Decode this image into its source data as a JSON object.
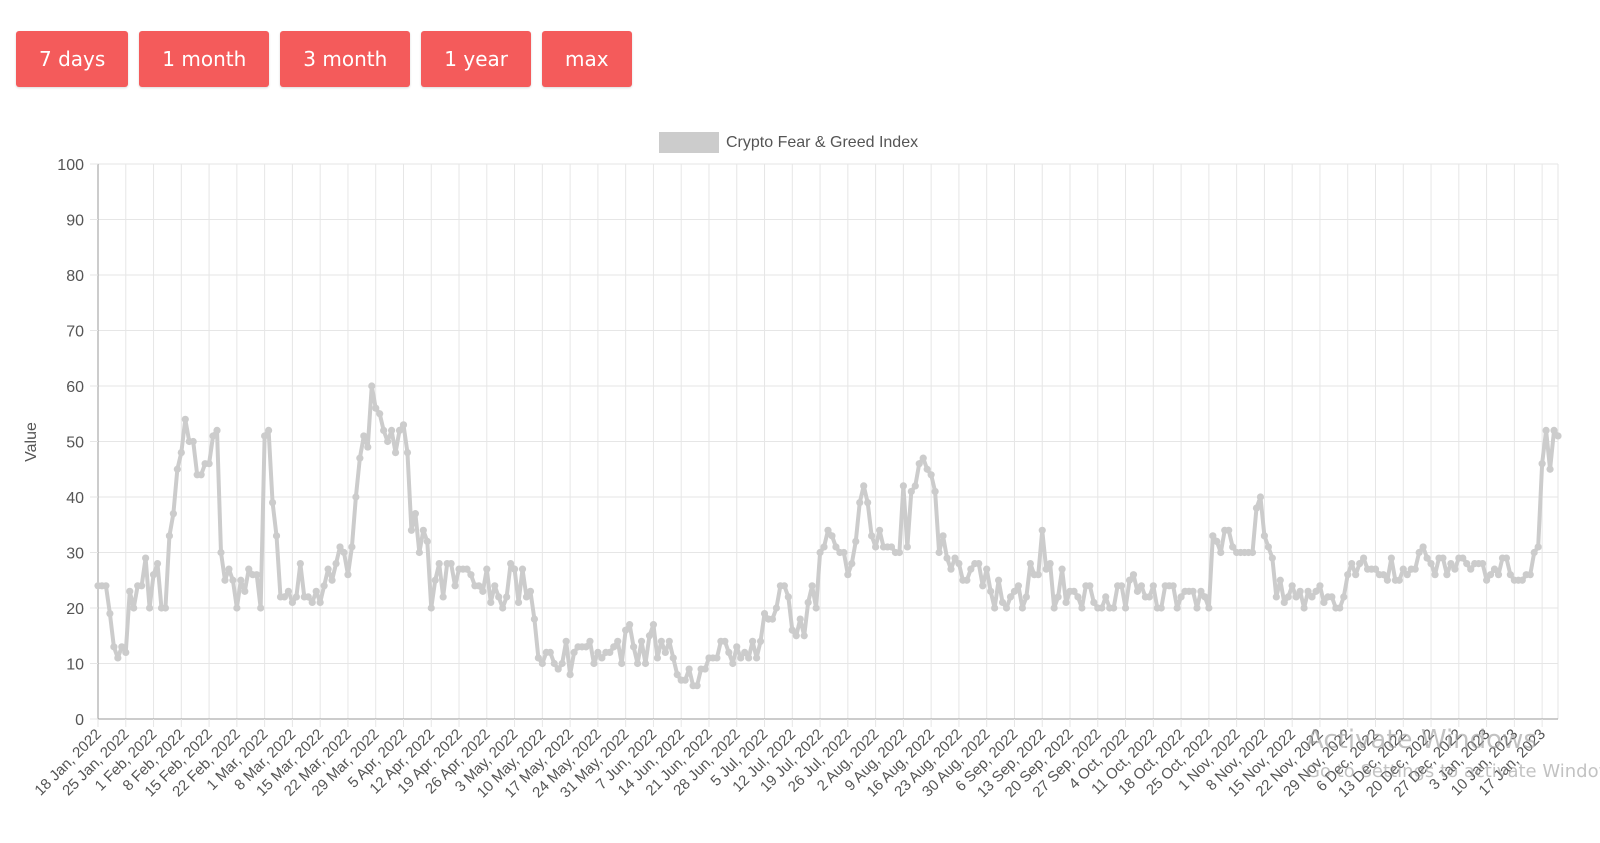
{
  "range_buttons": [
    "7 days",
    "1 month",
    "3 month",
    "1 year",
    "max"
  ],
  "watermark": {
    "line1": "Activate Windows",
    "line2": "Go to Settings to activate Windows."
  },
  "colors": {
    "button": "#f45b5b",
    "series": "#cccccc",
    "grid": "#e6e6e6"
  },
  "chart_data": {
    "type": "line",
    "title": "",
    "legend": {
      "label": "Crypto Fear & Greed Index",
      "position": "top-center"
    },
    "xlabel": "",
    "ylabel": "Value",
    "ylim": [
      0,
      100
    ],
    "yticks": [
      0,
      10,
      20,
      30,
      40,
      50,
      60,
      70,
      80,
      90,
      100
    ],
    "grid": true,
    "x_start": "18 Jan, 2022",
    "x_end": "19 Jan, 2023",
    "x_step_days": 1,
    "x_ticks": [
      "18 Jan, 2022",
      "25 Jan, 2022",
      "1 Feb, 2022",
      "8 Feb, 2022",
      "15 Feb, 2022",
      "22 Feb, 2022",
      "1 Mar, 2022",
      "8 Mar, 2022",
      "15 Mar, 2022",
      "22 Mar, 2022",
      "29 Mar, 2022",
      "5 Apr, 2022",
      "12 Apr, 2022",
      "19 Apr, 2022",
      "26 Apr, 2022",
      "3 May, 2022",
      "10 May, 2022",
      "17 May, 2022",
      "24 May, 2022",
      "31 May, 2022",
      "7 Jun, 2022",
      "14 Jun, 2022",
      "21 Jun, 2022",
      "28 Jun, 2022",
      "5 Jul, 2022",
      "12 Jul, 2022",
      "19 Jul, 2022",
      "26 Jul, 2022",
      "2 Aug, 2022",
      "9 Aug, 2022",
      "16 Aug, 2022",
      "23 Aug, 2022",
      "30 Aug, 2022",
      "6 Sep, 2022",
      "13 Sep, 2022",
      "20 Sep, 2022",
      "27 Sep, 2022",
      "4 Oct, 2022",
      "11 Oct, 2022",
      "18 Oct, 2022",
      "25 Oct, 2022",
      "1 Nov, 2022",
      "8 Nov, 2022",
      "15 Nov, 2022",
      "22 Nov, 2022",
      "29 Nov, 2022",
      "6 Dec, 2022",
      "13 Dec, 2022",
      "20 Dec, 2022",
      "27 Dec, 2022",
      "3 Jan, 2023",
      "10 Jan, 2023",
      "17 Jan, 2023"
    ],
    "series": [
      {
        "name": "Crypto Fear & Greed Index",
        "color": "#cccccc",
        "values": [
          24,
          24,
          24,
          19,
          13,
          11,
          13,
          12,
          23,
          20,
          24,
          24,
          29,
          20,
          26,
          28,
          20,
          20,
          33,
          37,
          45,
          48,
          54,
          50,
          50,
          44,
          44,
          46,
          46,
          51,
          52,
          30,
          25,
          27,
          25,
          20,
          25,
          23,
          27,
          26,
          26,
          20,
          51,
          52,
          39,
          33,
          22,
          22,
          23,
          21,
          22,
          28,
          22,
          22,
          21,
          23,
          21,
          24,
          27,
          25,
          28,
          31,
          30,
          26,
          31,
          40,
          47,
          51,
          49,
          60,
          56,
          55,
          52,
          50,
          52,
          48,
          52,
          53,
          48,
          34,
          37,
          30,
          34,
          32,
          20,
          25,
          28,
          22,
          28,
          28,
          24,
          27,
          27,
          27,
          26,
          24,
          24,
          23,
          27,
          21,
          24,
          22,
          20,
          22,
          28,
          27,
          21,
          27,
          22,
          23,
          18,
          11,
          10,
          12,
          12,
          10,
          9,
          10,
          14,
          8,
          12,
          13,
          13,
          13,
          14,
          10,
          12,
          11,
          12,
          12,
          13,
          14,
          10,
          16,
          17,
          13,
          10,
          14,
          10,
          15,
          17,
          11,
          14,
          12,
          14,
          11,
          8,
          7,
          7,
          9,
          6,
          6,
          9,
          9,
          11,
          11,
          11,
          14,
          14,
          12,
          10,
          13,
          11,
          12,
          11,
          14,
          11,
          14,
          19,
          18,
          18,
          20,
          24,
          24,
          22,
          16,
          15,
          18,
          15,
          21,
          24,
          20,
          30,
          31,
          34,
          33,
          31,
          30,
          30,
          26,
          28,
          32,
          39,
          42,
          39,
          33,
          31,
          34,
          31,
          31,
          31,
          30,
          30,
          42,
          31,
          41,
          42,
          46,
          47,
          45,
          44,
          41,
          30,
          33,
          29,
          27,
          29,
          28,
          25,
          25,
          27,
          28,
          28,
          24,
          27,
          23,
          20,
          25,
          21,
          20,
          22,
          23,
          24,
          20,
          22,
          28,
          26,
          26,
          34,
          27,
          28,
          20,
          22,
          27,
          21,
          23,
          23,
          22,
          20,
          24,
          24,
          21,
          20,
          20,
          22,
          20,
          20,
          24,
          24,
          20,
          25,
          26,
          23,
          24,
          22,
          22,
          24,
          20,
          20,
          24,
          24,
          24,
          20,
          22,
          23,
          23,
          23,
          20,
          23,
          22,
          20,
          33,
          32,
          30,
          34,
          34,
          31,
          30,
          30,
          30,
          30,
          30,
          38,
          40,
          33,
          31,
          29,
          22,
          25,
          21,
          22,
          24,
          22,
          23,
          20,
          23,
          22,
          23,
          24,
          21,
          22,
          22,
          20,
          20,
          22,
          26,
          28,
          26,
          28,
          29,
          27,
          27,
          27,
          26,
          26,
          25,
          29,
          25,
          25,
          27,
          26,
          27,
          27,
          30,
          31,
          29,
          28,
          26,
          29,
          29,
          26,
          28,
          27,
          29,
          29,
          28,
          27,
          28,
          28,
          28,
          25,
          26,
          27,
          26,
          29,
          29,
          26,
          25,
          25,
          25,
          26,
          26,
          30,
          31,
          46,
          52,
          45,
          52,
          51
        ]
      }
    ]
  }
}
